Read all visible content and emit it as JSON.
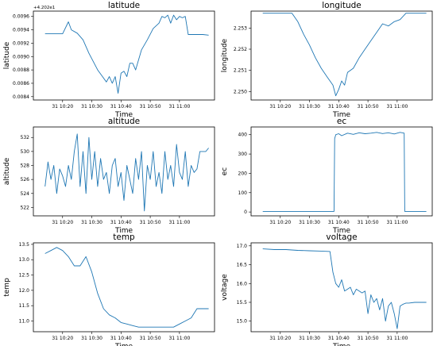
{
  "colors": {
    "line": "#1f77b4",
    "axes": "#000000",
    "background": "#ffffff"
  },
  "chart_data": [
    {
      "type": "line",
      "title": "latitude",
      "xlabel": "Time",
      "ylabel": "latitude",
      "offset_text": "+4.202e1",
      "x_ticks": [
        "31 10:20",
        "31 10:30",
        "31 10:40",
        "31 10:50",
        "31 11:00"
      ],
      "x_range_min": [
        4,
        60
      ],
      "y_ticks": [
        0.0084,
        0.0086,
        0.0088,
        0.009,
        0.0092,
        0.0094,
        0.0096
      ],
      "y_tick_labels": [
        "0.0084",
        "0.0086",
        "0.0088",
        "0.0090",
        "0.0092",
        "0.0094",
        "0.0096"
      ],
      "ylim": [
        0.00835,
        0.00968
      ],
      "grid": false,
      "series": [
        {
          "x_min": [
            4,
            10,
            12,
            13,
            15,
            17,
            19,
            22,
            25,
            26,
            27,
            28,
            29,
            30,
            31,
            32,
            33,
            34,
            35,
            37,
            39,
            41,
            43,
            44,
            45,
            46,
            47,
            48,
            49,
            50,
            51,
            52,
            53,
            56,
            58,
            60
          ],
          "y": [
            0.00934,
            0.00934,
            0.00952,
            0.0094,
            0.00935,
            0.00925,
            0.00905,
            0.0088,
            0.00862,
            0.0087,
            0.0086,
            0.0087,
            0.00845,
            0.00875,
            0.00878,
            0.0087,
            0.0089,
            0.0089,
            0.0088,
            0.0091,
            0.00925,
            0.00942,
            0.0095,
            0.0096,
            0.00958,
            0.00962,
            0.0095,
            0.00962,
            0.00955,
            0.0096,
            0.00958,
            0.0096,
            0.00933,
            0.00933,
            0.00933,
            0.00932
          ]
        }
      ]
    },
    {
      "type": "line",
      "title": "longitude",
      "xlabel": "Time",
      "ylabel": "longitude",
      "x_ticks": [
        "31 10:20",
        "31 10:30",
        "31 10:40",
        "31 10:50",
        "31 11:00"
      ],
      "x_range_min": [
        4,
        60
      ],
      "y_ticks": [
        2.25,
        2.251,
        2.252,
        2.253
      ],
      "y_tick_labels": [
        "2.250",
        "2.251",
        "2.252",
        "2.253"
      ],
      "ylim": [
        2.2496,
        2.2538
      ],
      "grid": false,
      "series": [
        {
          "x_min": [
            4,
            14,
            16,
            18,
            20,
            22,
            24,
            26,
            28,
            29,
            30,
            31,
            32,
            33,
            35,
            37,
            39,
            41,
            43,
            45,
            47,
            49,
            51,
            53,
            55,
            57,
            60
          ],
          "y": [
            2.2537,
            2.2537,
            2.2533,
            2.2527,
            2.2522,
            2.2516,
            2.2511,
            2.2507,
            2.2503,
            2.2498,
            2.2501,
            2.2505,
            2.2503,
            2.2509,
            2.2511,
            2.2516,
            2.252,
            2.2524,
            2.2528,
            2.2532,
            2.2531,
            2.2533,
            2.2534,
            2.2537,
            2.2537,
            2.2537,
            2.2537
          ]
        }
      ]
    },
    {
      "type": "line",
      "title": "altitude",
      "xlabel": "Time",
      "ylabel": "altitude",
      "x_ticks": [
        "31 10:20",
        "31 10:30",
        "31 10:40",
        "31 10:50",
        "31 11:00"
      ],
      "x_range_min": [
        4,
        60
      ],
      "y_ticks": [
        522,
        524,
        526,
        528,
        530,
        532
      ],
      "y_tick_labels": [
        "522",
        "524",
        "526",
        "528",
        "530",
        "532"
      ],
      "ylim": [
        520.8,
        533.5
      ],
      "grid": false,
      "series": [
        {
          "x_min": [
            4,
            5,
            6,
            7,
            8,
            9,
            10,
            11,
            12,
            13,
            14,
            15,
            16,
            17,
            18,
            19,
            20,
            21,
            22,
            23,
            24,
            25,
            26,
            27,
            28,
            29,
            30,
            31,
            32,
            33,
            34,
            35,
            36,
            37,
            38,
            39,
            40,
            41,
            42,
            43,
            44,
            45,
            46,
            47,
            48,
            49,
            50,
            51,
            52,
            53,
            54,
            55,
            56,
            57,
            58,
            59,
            60
          ],
          "y": [
            525,
            528.5,
            526,
            528,
            524,
            527.5,
            526.5,
            525,
            528,
            526,
            530,
            532.5,
            525,
            530,
            524,
            532,
            526,
            530,
            525,
            529,
            526,
            527,
            524,
            528,
            529,
            525,
            527,
            523,
            528,
            526,
            524,
            529,
            526,
            530,
            521.5,
            528,
            526,
            530,
            525,
            527,
            524,
            530,
            526,
            528,
            525,
            531,
            527,
            526,
            530,
            525,
            528,
            527,
            527.5,
            530,
            530,
            530,
            530.5
          ]
        }
      ]
    },
    {
      "type": "line",
      "title": "ec",
      "xlabel": "Time",
      "ylabel": "ec",
      "x_ticks": [
        "31 10:20",
        "31 10:30",
        "31 10:40",
        "31 10:50",
        "31 11:00"
      ],
      "x_range_min": [
        4,
        60
      ],
      "y_ticks": [
        0,
        100,
        200,
        300,
        400
      ],
      "y_tick_labels": [
        "0",
        "100",
        "200",
        "300",
        "400"
      ],
      "ylim": [
        -20,
        440
      ],
      "grid": false,
      "series": [
        {
          "x_min": [
            4,
            18,
            22,
            28.4,
            28.6,
            29,
            30,
            31,
            33,
            35,
            37,
            39,
            41,
            43,
            45,
            47,
            49,
            51,
            52.4,
            52.6,
            55,
            60
          ],
          "y": [
            3,
            3,
            3,
            3,
            380,
            400,
            405,
            395,
            408,
            402,
            410,
            405,
            408,
            412,
            406,
            410,
            404,
            412,
            408,
            3,
            3,
            3
          ]
        }
      ]
    },
    {
      "type": "line",
      "title": "temp",
      "xlabel": "Time",
      "ylabel": "temp",
      "x_ticks": [
        "31 10:20",
        "31 10:30",
        "31 10:40",
        "31 10:50",
        "31 11:00"
      ],
      "x_range_min": [
        4,
        60
      ],
      "y_ticks": [
        11.0,
        11.5,
        12.0,
        12.5,
        13.0,
        13.5
      ],
      "y_tick_labels": [
        "11.0",
        "11.5",
        "12.0",
        "12.5",
        "13.0",
        "13.5"
      ],
      "ylim": [
        10.65,
        13.55
      ],
      "grid": false,
      "series": [
        {
          "x_min": [
            4,
            6,
            8,
            10,
            12,
            14,
            16,
            18,
            20,
            22,
            24,
            26,
            28,
            30,
            32,
            34,
            36,
            40,
            44,
            48,
            50,
            52,
            54,
            56,
            58,
            60
          ],
          "y": [
            13.2,
            13.3,
            13.4,
            13.3,
            13.1,
            12.8,
            12.8,
            13.1,
            12.6,
            11.9,
            11.4,
            11.2,
            11.1,
            10.95,
            10.9,
            10.85,
            10.8,
            10.8,
            10.8,
            10.8,
            10.9,
            11.0,
            11.1,
            11.4,
            11.4,
            11.4
          ]
        }
      ]
    },
    {
      "type": "line",
      "title": "voltage",
      "xlabel": "Time",
      "ylabel": "voltage",
      "x_ticks": [
        "31 10:20",
        "31 10:30",
        "31 10:40",
        "31 10:50",
        "31 11:00"
      ],
      "x_range_min": [
        4,
        60
      ],
      "y_ticks": [
        15.0,
        15.5,
        16.0,
        16.5,
        17.0
      ],
      "y_tick_labels": [
        "15.0",
        "15.5",
        "16.0",
        "16.5",
        "17.0"
      ],
      "ylim": [
        14.72,
        17.08
      ],
      "grid": false,
      "series": [
        {
          "x_min": [
            4,
            8,
            12,
            16,
            20,
            24,
            27,
            28,
            29,
            30,
            31,
            32,
            33,
            34,
            35,
            36,
            37,
            38,
            39,
            40,
            41,
            42,
            43,
            44,
            45,
            46,
            47,
            48,
            49,
            50,
            51,
            52,
            53,
            54,
            56,
            60
          ],
          "y": [
            16.92,
            16.9,
            16.9,
            16.88,
            16.87,
            16.86,
            16.85,
            16.3,
            16.0,
            15.9,
            16.1,
            15.8,
            15.85,
            15.9,
            15.7,
            15.85,
            15.8,
            15.75,
            15.8,
            15.2,
            15.7,
            15.5,
            15.6,
            15.3,
            15.6,
            15.0,
            15.4,
            15.5,
            15.2,
            14.8,
            15.4,
            15.45,
            15.48,
            15.48,
            15.5,
            15.5
          ]
        }
      ]
    }
  ]
}
